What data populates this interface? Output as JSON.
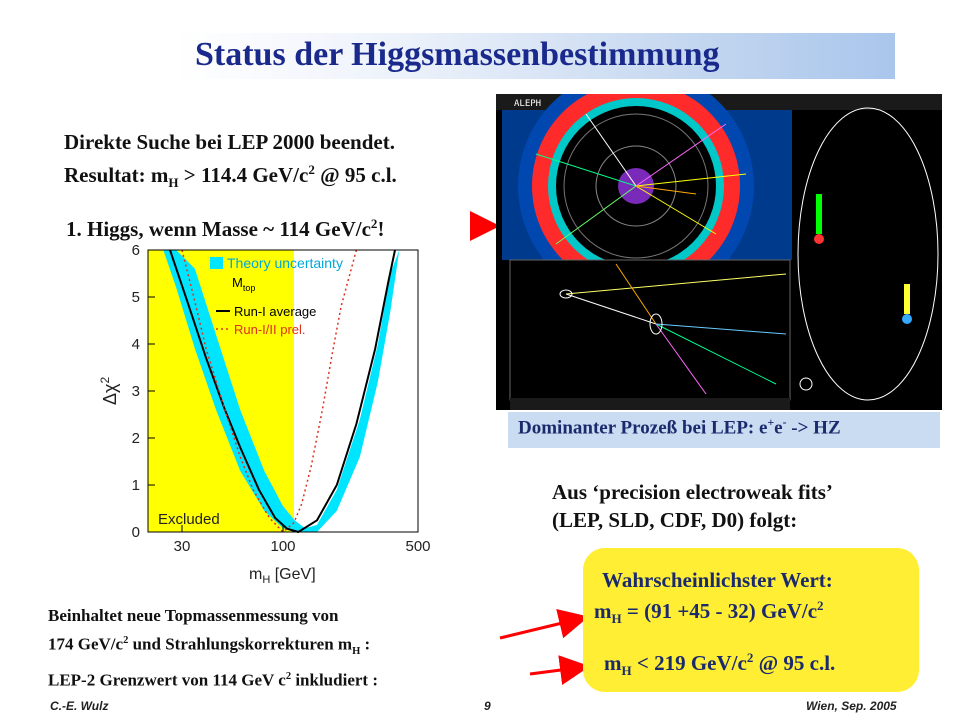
{
  "title": "Status der Higgsmassenbestimmung",
  "lep_text": {
    "line1": "Direkte Suche bei LEP 2000 beendet.",
    "line2_prefix": "Resultat: m",
    "line2_sub": "H",
    "line2_mid": " > 114.4 GeV/c",
    "line2_sup": "2",
    "line2_end": " @ 95 c.l."
  },
  "higgs_note": {
    "text": "1. Higgs, wenn Masse ~ 114 GeV/c",
    "sup": "2",
    "end": "!"
  },
  "event_display": {
    "label": "ALEPH",
    "caption_prefix": "Dominanter Prozeß bei LEP: e",
    "caption_sup1": "+",
    "caption_mid": "e",
    "caption_sup2": "-",
    "caption_end": " -> HZ"
  },
  "fits_text": {
    "line1": "Aus ‘precision electroweak fits’",
    "line2": "(LEP, SLD, CDF, D0) folgt:"
  },
  "result": {
    "heading": "Wahrscheinlichster Wert:",
    "value_prefix": "m",
    "value_sub": "H",
    "value_mid": " = (91 +45 - 32) GeV/c",
    "value_sup": "2",
    "limit_prefix": "m",
    "limit_sub": "H",
    "limit_mid": " < 219 GeV/c",
    "limit_sup": "2",
    "limit_end": " @ 95 c.l."
  },
  "bottom_text": {
    "line1": "Beinhaltet neue Topmassenmessung von",
    "line2_prefix": "174 GeV/c",
    "line2_sup": "2",
    "line2_mid": " und Strahlungskorrekturen m",
    "line2_sub": "H",
    "line2_end": " :",
    "line3_prefix": "LEP-2 Grenzwert von 114 GeV c",
    "line3_sup": "2",
    "line3_end": " inkludiert :"
  },
  "footer": {
    "author": "C.-E. Wulz",
    "page": "9",
    "venue": "Wien, Sep. 2005"
  },
  "colors": {
    "title": "#1a2a8c",
    "excluded": "#ffff00",
    "band": "#00e5ff",
    "result_bg": "#ffee33",
    "arrow": "#ff0000"
  },
  "chart_data": {
    "type": "line",
    "xlabel": "m",
    "xlabel_sub": "H",
    "xlabel_unit": " [GeV]",
    "ylabel": "Δχ",
    "ylabel_sup": "2",
    "x_scale": "log",
    "xlim": [
      20,
      500
    ],
    "ylim": [
      0,
      6
    ],
    "x_ticks": [
      30,
      100,
      500
    ],
    "x_tick_labels": [
      "30",
      "100",
      "500"
    ],
    "y_ticks": [
      0,
      1,
      2,
      3,
      4,
      5,
      6
    ],
    "y_tick_labels": [
      "0",
      "1",
      "2",
      "3",
      "4",
      "5",
      "6"
    ],
    "excluded_region": {
      "x_max": 114,
      "label": "Excluded"
    },
    "legend": {
      "placement": "top-right",
      "band": "Theory uncertainty",
      "header": "M",
      "header_sub": "top",
      "solid": "Run-I average",
      "dotted": "Run-I/II prel."
    },
    "series": [
      {
        "name": "Run-I average",
        "style": "solid",
        "x": [
          26,
          32,
          40,
          50,
          60,
          75,
          91,
          105,
          120,
          150,
          190,
          240,
          300,
          350,
          380
        ],
        "y": [
          6.0,
          4.9,
          3.7,
          2.6,
          1.8,
          0.9,
          0.3,
          0.07,
          0.0,
          0.25,
          1.0,
          2.3,
          3.9,
          5.3,
          6.0
        ]
      },
      {
        "name": "Theory uncertainty",
        "style": "band",
        "x": [
          24,
          28,
          35,
          45,
          60,
          80,
          100,
          115,
          130,
          150,
          190,
          250,
          310,
          360,
          400
        ],
        "y_low": [
          6.0,
          5.2,
          3.9,
          2.6,
          1.3,
          0.45,
          0.08,
          0.0,
          0.0,
          0.0,
          0.45,
          1.6,
          3.2,
          4.7,
          6.0
        ],
        "y_high": [
          6.0,
          6.0,
          5.6,
          4.2,
          2.6,
          1.3,
          0.55,
          0.25,
          0.08,
          0.15,
          0.9,
          2.4,
          4.0,
          5.5,
          6.0
        ]
      },
      {
        "name": "Run-I/II prel.",
        "style": "dotted",
        "x": [
          30,
          35,
          40,
          50,
          60,
          70,
          85,
          100,
          114,
          125,
          140,
          160,
          180,
          200,
          240
        ],
        "y": [
          6.0,
          4.9,
          3.9,
          2.6,
          1.6,
          0.9,
          0.3,
          0.0,
          0.2,
          0.6,
          1.4,
          2.6,
          3.8,
          4.8,
          6.0
        ]
      }
    ]
  }
}
